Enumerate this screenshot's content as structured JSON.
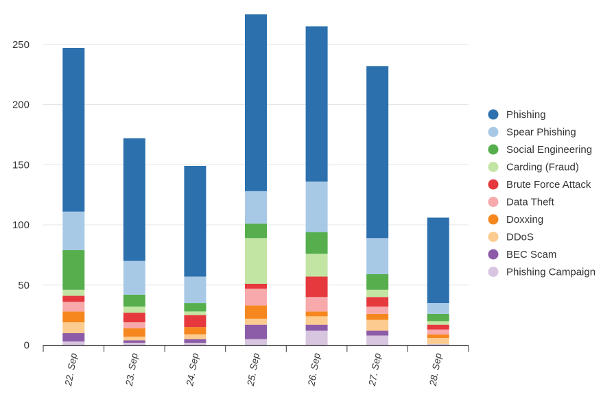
{
  "chart_data": {
    "type": "bar",
    "stacked": true,
    "categories": [
      "22. Sep",
      "23. Sep",
      "24. Sep",
      "25. Sep",
      "26. Sep",
      "27. Sep",
      "28. Sep"
    ],
    "series": [
      {
        "name": "Phishing",
        "color": "#2c70ad",
        "values": [
          136,
          102,
          92,
          147,
          129,
          143,
          71
        ]
      },
      {
        "name": "Spear Phishing",
        "color": "#a8c9e6",
        "values": [
          32,
          28,
          22,
          27,
          42,
          30,
          9
        ]
      },
      {
        "name": "Social Engineering",
        "color": "#56ae4d",
        "values": [
          33,
          10,
          7,
          12,
          18,
          13,
          6
        ]
      },
      {
        "name": "Carding (Fraud)",
        "color": "#c3e5a4",
        "values": [
          5,
          5,
          3,
          38,
          19,
          6,
          3
        ]
      },
      {
        "name": "Brute Force Attack",
        "color": "#e5393e",
        "values": [
          5,
          8,
          10,
          4,
          17,
          8,
          4
        ]
      },
      {
        "name": "Data Theft",
        "color": "#f7a9ab",
        "values": [
          8,
          5,
          0,
          14,
          12,
          6,
          4
        ]
      },
      {
        "name": "Doxxing",
        "color": "#f6871f",
        "values": [
          9,
          7,
          6,
          11,
          4,
          5,
          3
        ]
      },
      {
        "name": "DDoS",
        "color": "#fccb8f",
        "values": [
          9,
          3,
          4,
          5,
          7,
          9,
          5
        ]
      },
      {
        "name": "BEC Scam",
        "color": "#8c5ca8",
        "values": [
          7,
          2,
          3,
          12,
          5,
          4,
          0
        ]
      },
      {
        "name": "Phishing Campaign",
        "color": "#d8c5e0",
        "values": [
          3,
          2,
          2,
          5,
          12,
          8,
          1
        ]
      }
    ],
    "y_ticks": [
      0,
      50,
      100,
      150,
      200,
      250
    ],
    "ylim": [
      0,
      280
    ],
    "grid": true,
    "legend_position": "right",
    "title": "",
    "xlabel": "",
    "ylabel": ""
  }
}
